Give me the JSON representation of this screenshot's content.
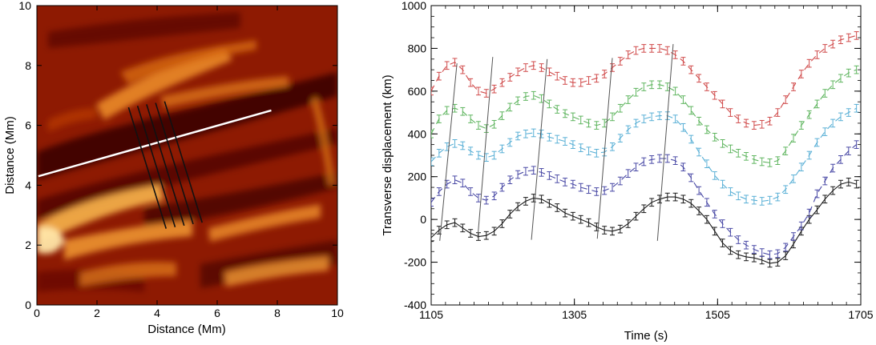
{
  "chart_data": [
    {
      "type": "heatmap",
      "xlabel": "Distance (Mm)",
      "ylabel": "Distance (Mm)",
      "xlim": [
        0,
        10
      ],
      "ylim": [
        0,
        10
      ],
      "xticks": [
        "0",
        "2",
        "4",
        "6",
        "8",
        "10"
      ],
      "yticks": [
        "0",
        "2",
        "4",
        "6",
        "8",
        "10"
      ],
      "colormap": [
        "#2a0000",
        "#7a0d00",
        "#b23200",
        "#e0700f",
        "#f6b24a",
        "#ffe6a8"
      ],
      "white_line": {
        "x": [
          0.05,
          7.8
        ],
        "y": [
          4.3,
          6.5
        ]
      },
      "slit_lines": [
        {
          "x": [
            3.05,
            4.3
          ],
          "y": [
            6.6,
            2.55
          ]
        },
        {
          "x": [
            3.35,
            4.6
          ],
          "y": [
            6.65,
            2.6
          ]
        },
        {
          "x": [
            3.65,
            4.9
          ],
          "y": [
            6.7,
            2.65
          ]
        },
        {
          "x": [
            3.95,
            5.2
          ],
          "y": [
            6.75,
            2.7
          ]
        },
        {
          "x": [
            4.25,
            5.5
          ],
          "y": [
            6.8,
            2.75
          ]
        }
      ]
    },
    {
      "type": "line",
      "xlabel": "Time (s)",
      "ylabel": "Transverse displacement (km)",
      "xlim": [
        1105,
        1705
      ],
      "ylim": [
        -400,
        1000
      ],
      "xticks": [
        "1105",
        "1305",
        "1505",
        "1705"
      ],
      "yticks": [
        "-400",
        "-200",
        "0",
        "200",
        "400",
        "600",
        "800",
        "1000"
      ],
      "x": [
        1105,
        1116,
        1127,
        1138,
        1149,
        1160,
        1171,
        1182,
        1193,
        1204,
        1215,
        1226,
        1237,
        1248,
        1259,
        1270,
        1281,
        1292,
        1303,
        1314,
        1325,
        1336,
        1347,
        1358,
        1369,
        1380,
        1391,
        1402,
        1413,
        1424,
        1435,
        1446,
        1457,
        1468,
        1479,
        1490,
        1501,
        1512,
        1523,
        1534,
        1545,
        1556,
        1567,
        1578,
        1589,
        1600,
        1611,
        1622,
        1633,
        1644,
        1655,
        1666,
        1677,
        1688,
        1699
      ],
      "series": [
        {
          "name": "black",
          "color": "#1a1a1a",
          "dash": "solid",
          "values": [
            -85,
            -50,
            -25,
            -15,
            -40,
            -65,
            -80,
            -75,
            -55,
            -20,
            25,
            60,
            85,
            100,
            95,
            75,
            55,
            30,
            15,
            0,
            -15,
            -35,
            -50,
            -55,
            -45,
            -20,
            15,
            50,
            80,
            95,
            105,
            105,
            95,
            75,
            40,
            0,
            -55,
            -110,
            -145,
            -165,
            -175,
            -180,
            -190,
            -205,
            -200,
            -170,
            -115,
            -55,
            0,
            45,
            95,
            135,
            165,
            175,
            165
          ]
        },
        {
          "name": "blue",
          "color": "#4a4aa6",
          "dash": "8,6",
          "values": [
            80,
            130,
            165,
            185,
            170,
            130,
            100,
            90,
            110,
            150,
            185,
            210,
            225,
            230,
            220,
            205,
            190,
            175,
            165,
            150,
            140,
            130,
            135,
            150,
            180,
            215,
            245,
            270,
            280,
            285,
            285,
            275,
            245,
            195,
            135,
            80,
            25,
            -20,
            -60,
            -95,
            -120,
            -140,
            -155,
            -165,
            -160,
            -130,
            -80,
            -30,
            30,
            120,
            180,
            240,
            280,
            320,
            350
          ]
        },
        {
          "name": "cyan",
          "color": "#5ab0d6",
          "dash": "8,6",
          "values": [
            270,
            310,
            340,
            355,
            345,
            320,
            300,
            290,
            300,
            330,
            360,
            390,
            400,
            405,
            400,
            385,
            375,
            365,
            350,
            335,
            320,
            310,
            315,
            340,
            380,
            420,
            450,
            470,
            480,
            485,
            485,
            470,
            430,
            375,
            315,
            260,
            205,
            165,
            130,
            110,
            95,
            90,
            85,
            90,
            105,
            140,
            190,
            245,
            300,
            360,
            410,
            450,
            480,
            500,
            520
          ]
        },
        {
          "name": "green",
          "color": "#5fb55f",
          "dash": "8,6",
          "values": [
            400,
            470,
            510,
            520,
            505,
            470,
            440,
            425,
            445,
            485,
            525,
            555,
            575,
            580,
            565,
            540,
            515,
            495,
            480,
            465,
            450,
            440,
            450,
            480,
            520,
            560,
            595,
            620,
            630,
            630,
            620,
            600,
            560,
            510,
            460,
            420,
            385,
            355,
            330,
            310,
            295,
            280,
            270,
            265,
            275,
            320,
            380,
            440,
            490,
            540,
            590,
            630,
            660,
            685,
            700
          ]
        },
        {
          "name": "red",
          "color": "#d04a4a",
          "dash": "8,6",
          "values": [
            600,
            670,
            720,
            735,
            700,
            640,
            600,
            590,
            610,
            640,
            665,
            690,
            710,
            720,
            710,
            690,
            670,
            650,
            640,
            640,
            650,
            660,
            680,
            710,
            740,
            770,
            790,
            800,
            800,
            800,
            790,
            770,
            740,
            700,
            660,
            620,
            580,
            540,
            500,
            470,
            450,
            440,
            445,
            460,
            500,
            560,
            620,
            680,
            730,
            770,
            800,
            820,
            840,
            850,
            860
          ]
        }
      ],
      "vertical_lines": [
        {
          "x": [
            1117,
            1141
          ],
          "y": [
            -100,
            730
          ]
        },
        {
          "x": [
            1170,
            1191
          ],
          "y": [
            -85,
            760
          ]
        },
        {
          "x": [
            1245,
            1267
          ],
          "y": [
            -95,
            750
          ]
        },
        {
          "x": [
            1337,
            1358
          ],
          "y": [
            -90,
            755
          ]
        },
        {
          "x": [
            1421,
            1443
          ],
          "y": [
            -100,
            820
          ]
        }
      ]
    }
  ]
}
